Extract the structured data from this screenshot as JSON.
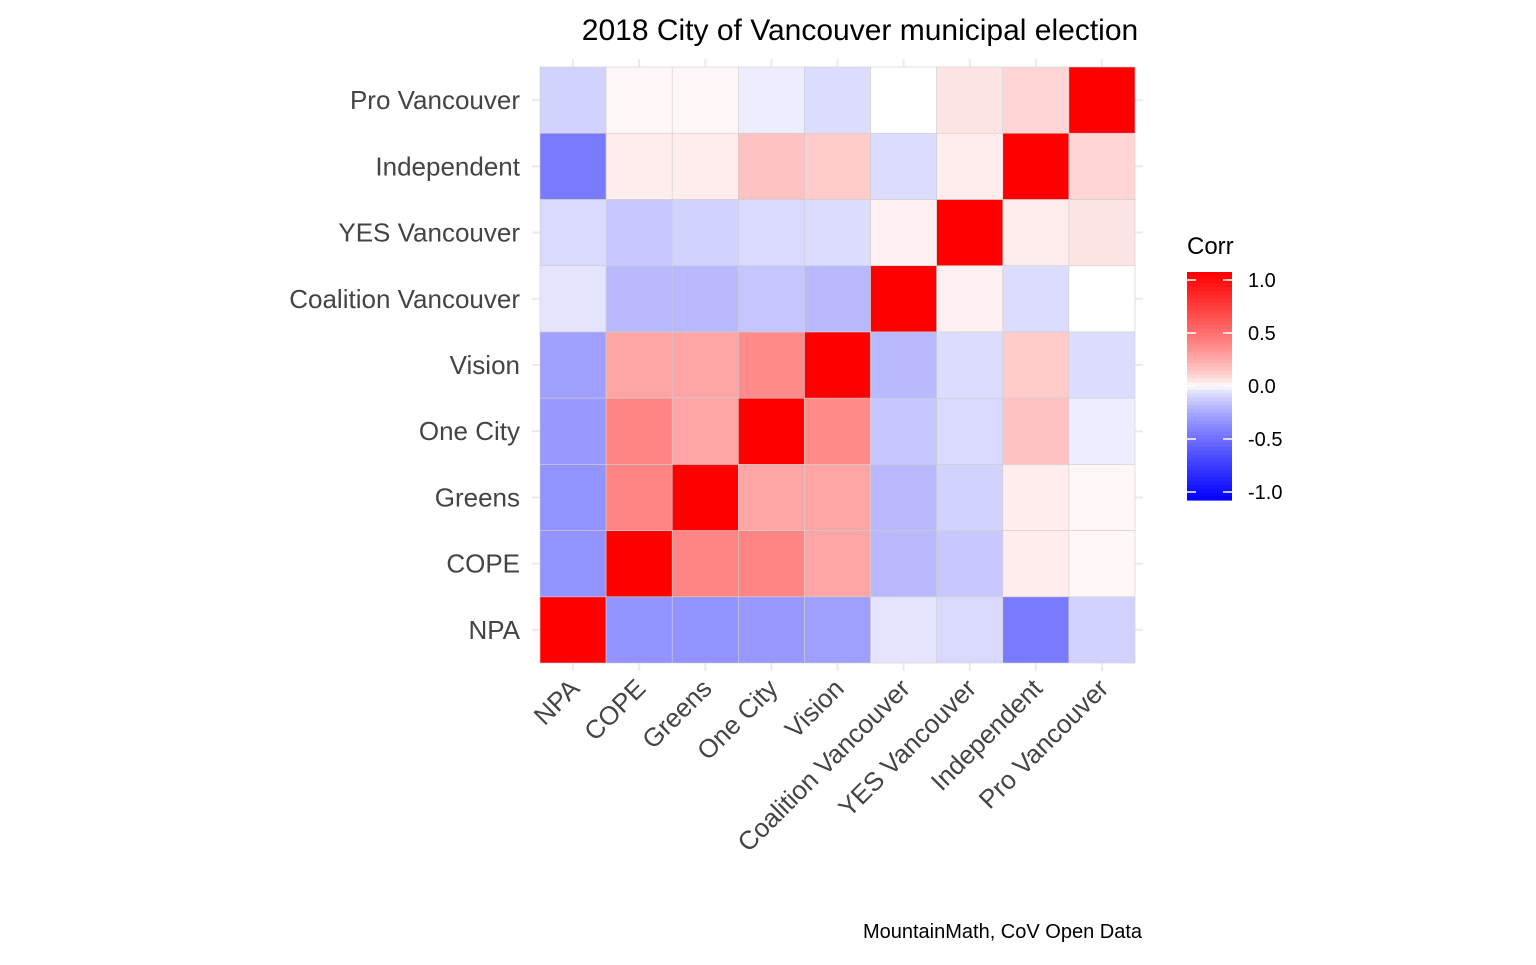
{
  "chart_data": {
    "type": "heatmap",
    "title": "2018 City of Vancouver municipal election",
    "caption": "MountainMath, CoV Open Data",
    "xlabel": "",
    "ylabel": "",
    "categories": [
      "NPA",
      "COPE",
      "Greens",
      "One City",
      "Vision",
      "Coalition Vancouver",
      "YES Vancouver",
      "Independent",
      "Pro Vancouver"
    ],
    "values": [
      [
        1.0,
        -0.32,
        -0.32,
        -0.3,
        -0.27,
        -0.05,
        -0.08,
        -0.42,
        -0.1
      ],
      [
        -0.32,
        1.0,
        0.38,
        0.38,
        0.25,
        -0.18,
        -0.13,
        0.03,
        0.01
      ],
      [
        -0.32,
        0.38,
        1.0,
        0.25,
        0.25,
        -0.18,
        -0.1,
        0.03,
        0.01
      ],
      [
        -0.3,
        0.38,
        0.25,
        1.0,
        0.35,
        -0.14,
        -0.08,
        0.15,
        -0.03
      ],
      [
        -0.27,
        0.25,
        0.25,
        0.35,
        1.0,
        -0.18,
        -0.07,
        0.12,
        -0.07
      ],
      [
        -0.05,
        -0.18,
        -0.18,
        -0.14,
        -0.18,
        1.0,
        0.02,
        -0.07,
        0.0
      ],
      [
        -0.08,
        -0.13,
        -0.1,
        -0.08,
        -0.07,
        0.02,
        1.0,
        0.03,
        0.05
      ],
      [
        -0.42,
        0.03,
        0.03,
        0.15,
        0.12,
        -0.07,
        0.03,
        1.0,
        0.09
      ],
      [
        -0.1,
        0.01,
        0.01,
        -0.03,
        -0.07,
        0.0,
        0.05,
        0.09,
        1.0
      ]
    ],
    "legend": {
      "title": "Corr",
      "ticks": [
        "1.0",
        "0.5",
        "0.0",
        "-0.5",
        "-1.0"
      ],
      "tick_values": [
        1,
        0.5,
        0,
        -0.5,
        -1
      ],
      "placement": "right"
    },
    "range": [
      -1,
      1
    ],
    "colors": {
      "high": "#FF0000",
      "mid": "#FFFFFF",
      "low": "#0000FF"
    },
    "grid": true
  }
}
